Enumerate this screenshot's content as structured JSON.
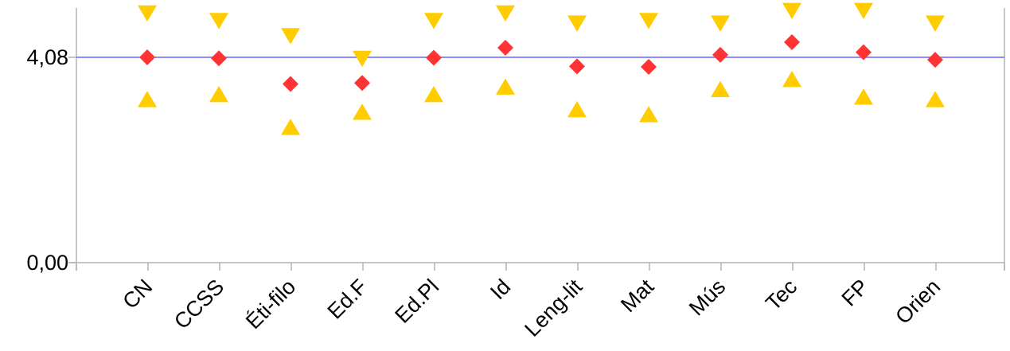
{
  "chart_data": {
    "type": "scatter",
    "categories": [
      "CN",
      "CCSS",
      "Éti-filo",
      "Ed.F",
      "Ed.Pl",
      "Id",
      "Leng-lit",
      "Mat",
      "Mús",
      "Tec",
      "FP",
      "Orien"
    ],
    "y_ticks": [
      "0,00",
      "4,08"
    ],
    "reference_line": {
      "value": 4.08,
      "color": "#6666ff"
    },
    "ylim": [
      0,
      5.1
    ],
    "series": [
      {
        "marker": "triangle-down",
        "color": "#ffcc00",
        "values": [
          4.95,
          4.8,
          4.5,
          4.05,
          4.8,
          4.95,
          4.75,
          4.8,
          4.75,
          5.0,
          5.0,
          4.75
        ]
      },
      {
        "marker": "diamond",
        "color": "#ff3333",
        "values": [
          4.08,
          4.06,
          3.55,
          3.57,
          4.07,
          4.27,
          3.9,
          3.89,
          4.13,
          4.38,
          4.18,
          4.03
        ]
      },
      {
        "marker": "triangle-up",
        "color": "#ffcc00",
        "values": [
          3.25,
          3.35,
          2.7,
          3.0,
          3.35,
          3.5,
          3.05,
          2.95,
          3.45,
          3.65,
          3.3,
          3.25
        ]
      }
    ],
    "grid": false,
    "legend": "none"
  }
}
